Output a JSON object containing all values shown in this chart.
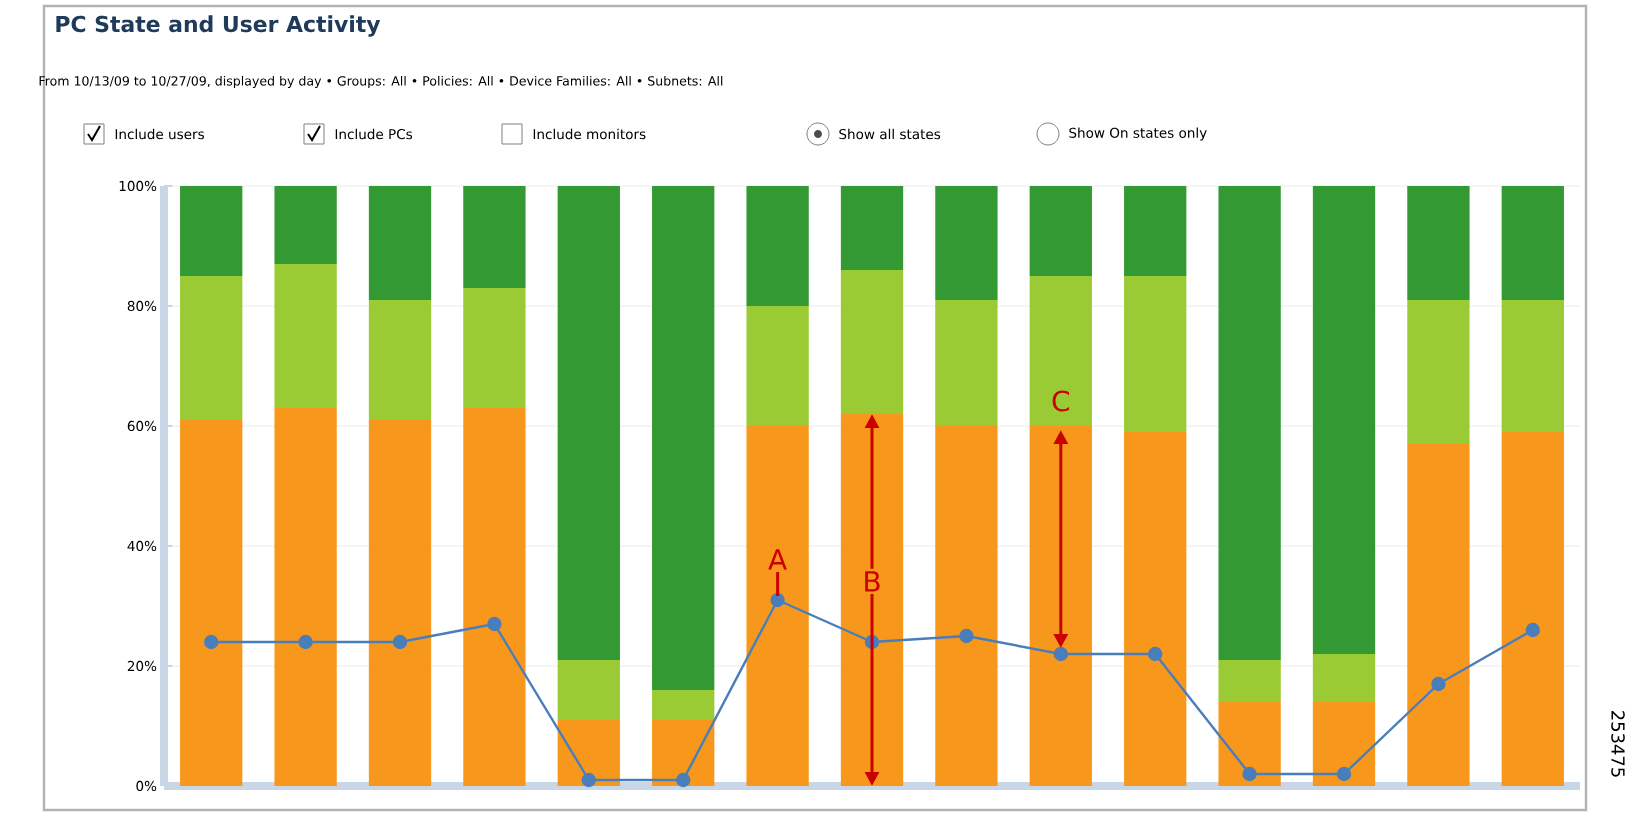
{
  "chart_data": {
    "type": "bar",
    "title": "PC State and User Activity",
    "subtitle": "From 10/13/09 to 10/27/09, displayed by day • Groups: All • Policies: All • Device Families: All • Subnets: All",
    "categories": [
      null,
      null,
      null,
      null,
      null,
      null,
      null,
      null,
      null,
      null,
      null,
      null,
      null,
      null,
      null
    ],
    "stacked": true,
    "series": [
      {
        "color": "#f7981d",
        "values": [
          61,
          63,
          61,
          63,
          11,
          11,
          60,
          62,
          60,
          60,
          59,
          14,
          14,
          57,
          59
        ]
      },
      {
        "color": "#9acb34",
        "values": [
          24,
          24,
          20,
          20,
          10,
          5,
          20,
          24,
          21,
          25,
          26,
          7,
          8,
          24,
          22
        ]
      },
      {
        "color": "#339933",
        "values": [
          15,
          13,
          19,
          17,
          79,
          84,
          20,
          14,
          19,
          15,
          15,
          79,
          78,
          19,
          19
        ]
      },
      {
        "type": "line",
        "color": "#4a7ebb",
        "marker": "circle",
        "values": [
          24,
          24,
          24,
          27,
          1,
          1,
          31,
          24,
          25,
          22,
          22,
          2,
          2,
          17,
          26
        ]
      }
    ],
    "ylim": [
      0,
      100
    ],
    "yticks": [
      {
        "value": 0,
        "label": "0%"
      },
      {
        "value": 20,
        "label": "20%"
      },
      {
        "value": 40,
        "label": "40%"
      },
      {
        "value": 60,
        "label": "60%"
      },
      {
        "value": 80,
        "label": "80%"
      },
      {
        "value": 100,
        "label": "100%"
      }
    ],
    "grid": "y",
    "annotations": [
      "Include users",
      "Include PCs",
      "Include monitors",
      "Show all states",
      "Show On states only",
      "A",
      "B",
      "C",
      "253475"
    ]
  }
}
